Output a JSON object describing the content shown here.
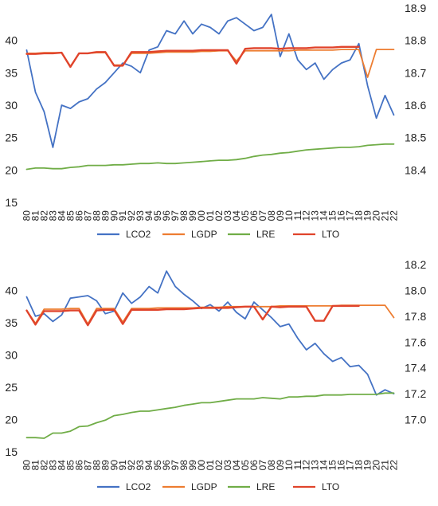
{
  "colors": {
    "LCO2": "#4472C4",
    "LGDP": "#ED7D31",
    "LRE": "#70AD47",
    "LTO": "#E0442C"
  },
  "chart_data": [
    {
      "type": "line",
      "categories": [
        "80",
        "81",
        "82",
        "83",
        "84",
        "85",
        "86",
        "87",
        "88",
        "89",
        "90",
        "91",
        "92",
        "93",
        "94",
        "95",
        "96",
        "97",
        "98",
        "99",
        "00",
        "01",
        "02",
        "03",
        "04",
        "05",
        "06",
        "07",
        "08",
        "09",
        "10",
        "11",
        "12",
        "13",
        "14",
        "15",
        "16",
        "17",
        "18",
        "19",
        "20",
        "21",
        "22"
      ],
      "left_axis": {
        "ylim": [
          15,
          45
        ],
        "ticks": [
          "15",
          "20",
          "25",
          "30",
          "35",
          "40"
        ]
      },
      "right_axis": {
        "ylim": [
          18.3,
          18.9
        ],
        "ticks": [
          "18.4",
          "18.5",
          "18.6",
          "18.7",
          "18.8",
          "18.9"
        ]
      },
      "series": [
        {
          "name": "LCO2",
          "axis": "right",
          "color": "#4472C4",
          "values": [
            18.77,
            18.64,
            18.58,
            18.47,
            18.6,
            18.59,
            18.61,
            18.62,
            18.65,
            18.67,
            18.7,
            18.73,
            18.72,
            18.7,
            18.77,
            18.78,
            18.83,
            18.82,
            18.86,
            18.82,
            18.85,
            18.84,
            18.82,
            18.86,
            18.87,
            18.85,
            18.83,
            18.84,
            18.88,
            18.75,
            18.82,
            18.74,
            18.71,
            18.73,
            18.68,
            18.71,
            18.73,
            18.74,
            18.79,
            18.66,
            18.56,
            18.63,
            18.57
          ]
        },
        {
          "name": "LGDP",
          "axis": "left",
          "color": "#ED7D31",
          "values": [
            38.0,
            38.0,
            38.1,
            38.1,
            38.1,
            36.0,
            38.0,
            38.0,
            38.1,
            38.1,
            36.2,
            36.2,
            38.0,
            38.0,
            38.0,
            38.1,
            38.2,
            38.2,
            38.2,
            38.2,
            38.3,
            38.3,
            38.4,
            38.4,
            36.8,
            38.4,
            38.4,
            38.4,
            38.4,
            38.4,
            38.4,
            38.5,
            38.5,
            38.5,
            38.5,
            38.5,
            38.6,
            38.6,
            38.6,
            34.3,
            38.6,
            38.6,
            38.6
          ]
        },
        {
          "name": "LRE",
          "axis": "left",
          "color": "#70AD47",
          "values": [
            20.1,
            20.3,
            20.3,
            20.2,
            20.2,
            20.4,
            20.5,
            20.7,
            20.7,
            20.7,
            20.8,
            20.8,
            20.9,
            21.0,
            21.0,
            21.1,
            21.0,
            21.0,
            21.1,
            21.2,
            21.3,
            21.4,
            21.5,
            21.5,
            21.6,
            21.8,
            22.1,
            22.3,
            22.4,
            22.6,
            22.7,
            22.9,
            23.1,
            23.2,
            23.3,
            23.4,
            23.5,
            23.5,
            23.6,
            23.8,
            23.9,
            24.0,
            24.0
          ]
        },
        {
          "name": "LTO",
          "axis": "left",
          "color": "#E0442C",
          "values": [
            37.9,
            37.9,
            38.0,
            38.0,
            38.1,
            35.9,
            38.0,
            38.0,
            38.2,
            38.2,
            36.1,
            36.1,
            38.2,
            38.2,
            38.2,
            38.3,
            38.4,
            38.4,
            38.4,
            38.4,
            38.5,
            38.5,
            38.5,
            38.5,
            36.4,
            38.7,
            38.8,
            38.8,
            38.8,
            38.7,
            38.8,
            38.8,
            38.8,
            38.9,
            38.9,
            38.9,
            39.0,
            39.0,
            39.0,
            null,
            null,
            null,
            null
          ]
        }
      ]
    },
    {
      "type": "line",
      "categories": [
        "80",
        "81",
        "82",
        "83",
        "84",
        "85",
        "86",
        "87",
        "88",
        "89",
        "90",
        "91",
        "92",
        "93",
        "94",
        "95",
        "96",
        "97",
        "98",
        "99",
        "00",
        "01",
        "02",
        "03",
        "04",
        "05",
        "06",
        "07",
        "08",
        "09",
        "10",
        "11",
        "12",
        "13",
        "14",
        "15",
        "16",
        "17",
        "18",
        "19",
        "20",
        "21",
        "22"
      ],
      "left_axis": {
        "ylim": [
          15,
          45
        ],
        "ticks": [
          "15",
          "20",
          "25",
          "30",
          "35",
          "40"
        ]
      },
      "right_axis": {
        "ylim": [
          16.75,
          18.25
        ],
        "ticks": [
          "17.0",
          "17.2",
          "17.4",
          "17.6",
          "17.8",
          "18.0",
          "18.2"
        ]
      },
      "series": [
        {
          "name": "LCO2",
          "axis": "right",
          "color": "#4472C4",
          "values": [
            17.95,
            17.8,
            17.82,
            17.76,
            17.81,
            17.94,
            17.95,
            17.96,
            17.92,
            17.82,
            17.84,
            17.98,
            17.9,
            17.95,
            18.03,
            17.98,
            18.15,
            18.03,
            17.97,
            17.92,
            17.86,
            17.89,
            17.84,
            17.91,
            17.83,
            17.78,
            17.91,
            17.85,
            17.79,
            17.72,
            17.74,
            17.63,
            17.54,
            17.59,
            17.51,
            17.45,
            17.48,
            17.41,
            17.42,
            17.35,
            17.19,
            17.23,
            17.2
          ]
        },
        {
          "name": "LGDP",
          "axis": "left",
          "color": "#ED7D31",
          "values": [
            36.9,
            34.9,
            37.1,
            37.1,
            37.1,
            37.2,
            37.2,
            34.8,
            37.2,
            37.2,
            37.2,
            35.1,
            37.2,
            37.2,
            37.2,
            37.3,
            37.3,
            37.3,
            37.3,
            37.3,
            37.4,
            37.4,
            37.4,
            37.5,
            37.5,
            37.5,
            37.5,
            37.5,
            37.5,
            37.6,
            37.6,
            37.6,
            37.6,
            37.6,
            37.6,
            37.6,
            37.7,
            37.7,
            37.7,
            37.7,
            37.7,
            37.7,
            35.8
          ]
        },
        {
          "name": "LRE",
          "axis": "left",
          "color": "#70AD47",
          "values": [
            17.2,
            17.2,
            17.1,
            17.9,
            17.9,
            18.2,
            18.9,
            19.0,
            19.5,
            19.9,
            20.6,
            20.8,
            21.1,
            21.3,
            21.3,
            21.5,
            21.7,
            21.9,
            22.2,
            22.4,
            22.6,
            22.6,
            22.8,
            23.0,
            23.2,
            23.2,
            23.2,
            23.4,
            23.3,
            23.2,
            23.5,
            23.5,
            23.6,
            23.6,
            23.8,
            23.8,
            23.8,
            23.9,
            23.9,
            23.9,
            23.9,
            24.1,
            24.1
          ]
        },
        {
          "name": "LTO",
          "axis": "left",
          "color": "#E0442C",
          "values": [
            36.9,
            34.7,
            36.8,
            36.8,
            36.8,
            36.9,
            36.9,
            34.6,
            36.9,
            37.0,
            37.0,
            34.8,
            37.0,
            37.0,
            37.0,
            37.0,
            37.1,
            37.1,
            37.1,
            37.2,
            37.3,
            37.3,
            37.3,
            37.3,
            37.4,
            37.5,
            37.5,
            35.5,
            37.5,
            37.4,
            37.5,
            37.5,
            37.5,
            35.3,
            35.3,
            37.6,
            37.6,
            37.6,
            37.6,
            null,
            null,
            null,
            null
          ]
        }
      ]
    }
  ]
}
